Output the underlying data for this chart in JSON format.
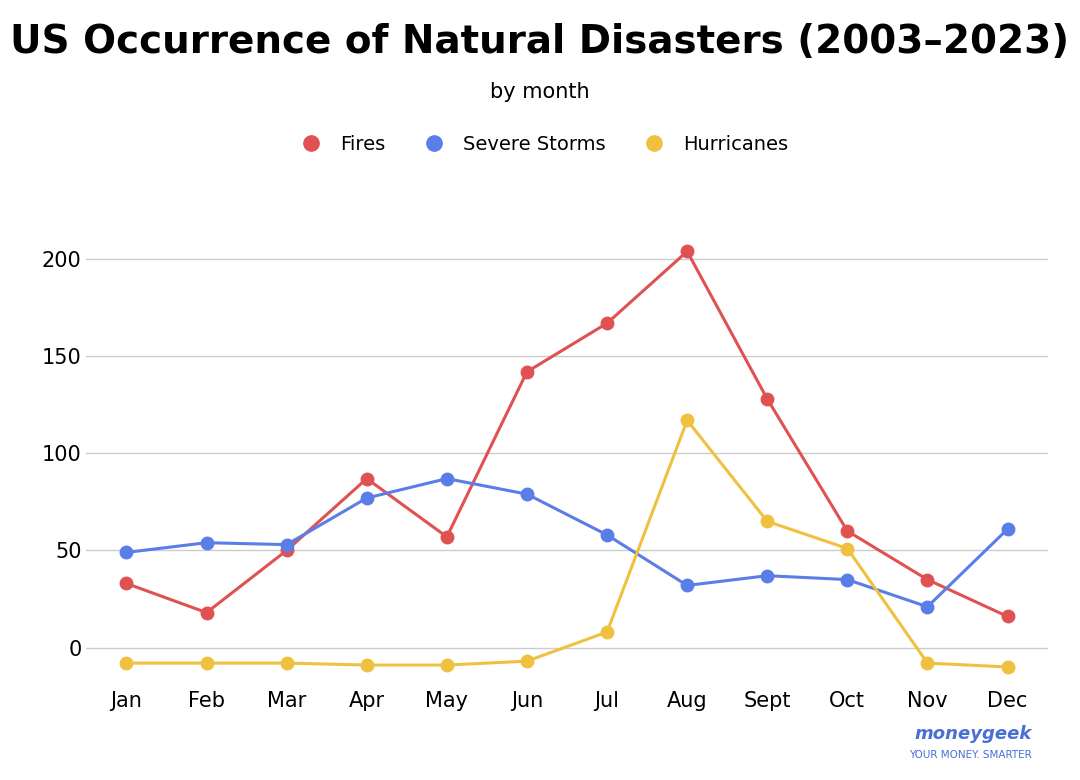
{
  "title": "US Occurrence of Natural Disasters (2003–2023)",
  "subtitle": "by month",
  "months": [
    "Jan",
    "Feb",
    "Mar",
    "Apr",
    "May",
    "Jun",
    "Jul",
    "Aug",
    "Sept",
    "Oct",
    "Nov",
    "Dec"
  ],
  "fires": [
    33,
    18,
    50,
    87,
    57,
    142,
    167,
    204,
    128,
    60,
    35,
    16
  ],
  "severe_storms": [
    49,
    54,
    53,
    77,
    87,
    79,
    58,
    32,
    37,
    35,
    21,
    61
  ],
  "hurricanes": [
    -8,
    -8,
    -8,
    -9,
    -9,
    -7,
    8,
    117,
    65,
    51,
    -8,
    -10
  ],
  "fires_color": "#e05252",
  "storms_color": "#5b7de8",
  "hurricanes_color": "#f0c040",
  "background_color": "#ffffff",
  "grid_color": "#cccccc",
  "title_fontsize": 28,
  "subtitle_fontsize": 15,
  "legend_fontsize": 14,
  "tick_fontsize": 15,
  "yticks": [
    0,
    50,
    100,
    150,
    200
  ],
  "ylim": [
    -20,
    225
  ],
  "marker_size": 9,
  "line_width": 2.2
}
